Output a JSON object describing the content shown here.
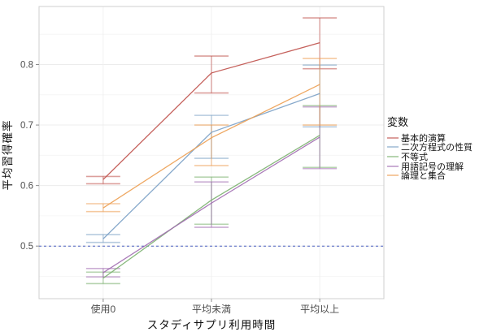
{
  "chart_data": {
    "type": "line",
    "title": "",
    "xlabel": "スタディサプリ利用時間",
    "ylabel": "平均習得確率",
    "legend_title": "変数",
    "categories": [
      "使用0",
      "平均未満",
      "平均以上"
    ],
    "yticks": [
      0.5,
      0.6,
      0.7,
      0.8
    ],
    "ytick_labels": [
      "0.5",
      "0.6",
      "0.7",
      "0.8"
    ],
    "ylim": [
      0.413,
      0.896
    ],
    "grid": "on",
    "legend_position": "right",
    "reference_line": {
      "y": 0.5,
      "style": "dashed",
      "color": "#4a5fc1"
    },
    "error_bars": true,
    "series": [
      {
        "name": "基本的演算",
        "color": "#bf504a",
        "values": [
          0.61,
          0.786,
          0.836
        ],
        "ci_low": [
          0.603,
          0.753,
          0.793
        ],
        "ci_high": [
          0.615,
          0.814,
          0.877
        ]
      },
      {
        "name": "二次方程式の性質",
        "color": "#7aa0c5",
        "values": [
          0.512,
          0.688,
          0.752
        ],
        "ci_low": [
          0.506,
          0.645,
          0.697
        ],
        "ci_high": [
          0.519,
          0.716,
          0.799
        ]
      },
      {
        "name": "不等式",
        "color": "#7ab06e",
        "values": [
          0.447,
          0.576,
          0.683
        ],
        "ci_low": [
          0.438,
          0.536,
          0.63
        ],
        "ci_high": [
          0.457,
          0.614,
          0.732
        ]
      },
      {
        "name": "用語記号の理解",
        "color": "#a06cb0",
        "values": [
          0.456,
          0.571,
          0.68
        ],
        "ci_low": [
          0.449,
          0.531,
          0.628
        ],
        "ci_high": [
          0.463,
          0.606,
          0.73
        ]
      },
      {
        "name": "論理と集合",
        "color": "#ec9d50",
        "values": [
          0.563,
          0.679,
          0.767
        ],
        "ci_low": [
          0.557,
          0.633,
          0.7
        ],
        "ci_high": [
          0.57,
          0.7,
          0.81
        ]
      }
    ]
  }
}
